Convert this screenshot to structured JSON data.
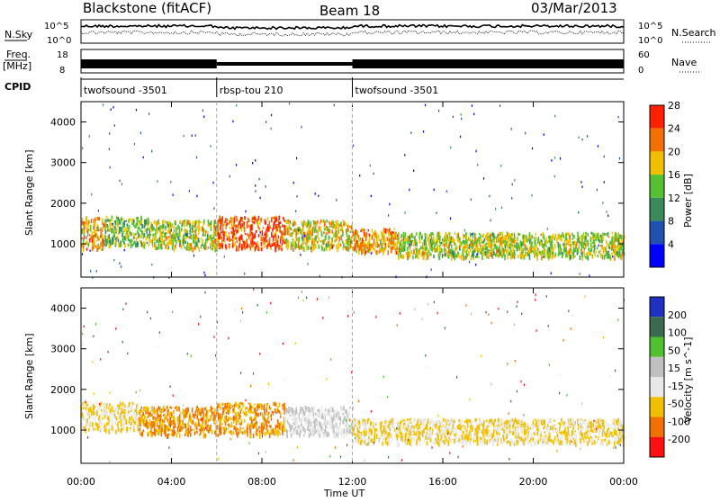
{
  "header": {
    "station": "Blackstone (fitACF)",
    "beam": "Beam 18",
    "date": "03/Mar/2013"
  },
  "strip_labels": {
    "nsky": "N.Sky",
    "freq": "Freq.",
    "freq_unit": "[MHz]",
    "cpid": "CPID",
    "nsearch": "N.Search",
    "nave": "Nave",
    "nsky_ticks": [
      "10^5",
      "10^0"
    ],
    "nsearch_ticks": [
      "10^5",
      "10^0"
    ],
    "freq_ticks": [
      "18",
      "8"
    ],
    "nave_ticks": [
      "60",
      "0"
    ]
  },
  "cpid_segments": [
    {
      "label": "twofsound -3501",
      "start_hour": 0,
      "end_hour": 6
    },
    {
      "label": "rbsp-tou 210",
      "start_hour": 6,
      "end_hour": 12
    },
    {
      "label": "twofsound -3501",
      "start_hour": 12,
      "end_hour": 24
    }
  ],
  "axes": {
    "x_label": "Time UT",
    "x_ticks": [
      "00:00",
      "04:00",
      "08:00",
      "12:00",
      "16:00",
      "20:00",
      "00:00"
    ],
    "y_label": "Slant Range [km]",
    "y_ticks": [
      "1000",
      "2000",
      "3000",
      "4000"
    ]
  },
  "chart_data": [
    {
      "type": "heatmap",
      "quantity": "Power",
      "colorbar_label": "Power [dB]",
      "colorbar_ticks": [
        "4",
        "8",
        "12",
        "16",
        "20",
        "24",
        "28"
      ],
      "colors": [
        "#0000ff",
        "#2050b0",
        "#3a8a5a",
        "#55c030",
        "#f0c000",
        "#f07000",
        "#ff2000"
      ],
      "xlim": [
        0,
        24
      ],
      "ylim": [
        180,
        4500
      ],
      "x_unit": "hours UT",
      "y_unit": "km",
      "bands": [
        {
          "t0": 0.0,
          "t1": 1.0,
          "r0": 900,
          "r1": 1700,
          "value": 22
        },
        {
          "t0": 1.0,
          "t1": 3.0,
          "r0": 1000,
          "r1": 1700,
          "value": 16
        },
        {
          "t0": 3.0,
          "t1": 6.0,
          "r0": 900,
          "r1": 1600,
          "value": 18
        },
        {
          "t0": 6.0,
          "t1": 9.0,
          "r0": 900,
          "r1": 1700,
          "value": 26
        },
        {
          "t0": 9.0,
          "t1": 12.0,
          "r0": 900,
          "r1": 1600,
          "value": 20
        },
        {
          "t0": 12.0,
          "t1": 14.0,
          "r0": 800,
          "r1": 1400,
          "value": 22
        },
        {
          "t0": 14.0,
          "t1": 24.0,
          "r0": 700,
          "r1": 1300,
          "value": 18
        }
      ]
    },
    {
      "type": "heatmap",
      "quantity": "Velocity",
      "colorbar_label": "Velocity [m s^-1]",
      "colorbar_ticks": [
        "200",
        "100",
        "50",
        "15",
        "-15",
        "-50",
        "-100",
        "-200"
      ],
      "colors": [
        "#2030c0",
        "#3a6a50",
        "#50c030",
        "#c0c0c0",
        "#e8e8e8",
        "#f0c000",
        "#f07000",
        "#ff1010"
      ],
      "xlim": [
        0,
        24
      ],
      "ylim": [
        180,
        4500
      ],
      "x_unit": "hours UT",
      "y_unit": "km",
      "bands": [
        {
          "t0": 0.0,
          "t1": 2.5,
          "r0": 1000,
          "r1": 1700,
          "value": -15
        },
        {
          "t0": 2.5,
          "t1": 6.0,
          "r0": 900,
          "r1": 1600,
          "value": -50
        },
        {
          "t0": 6.0,
          "t1": 9.0,
          "r0": 900,
          "r1": 1700,
          "value": -50
        },
        {
          "t0": 9.0,
          "t1": 12.0,
          "r0": 900,
          "r1": 1600,
          "value": 15
        },
        {
          "t0": 12.0,
          "t1": 24.0,
          "r0": 700,
          "r1": 1300,
          "value": -15
        }
      ]
    }
  ]
}
